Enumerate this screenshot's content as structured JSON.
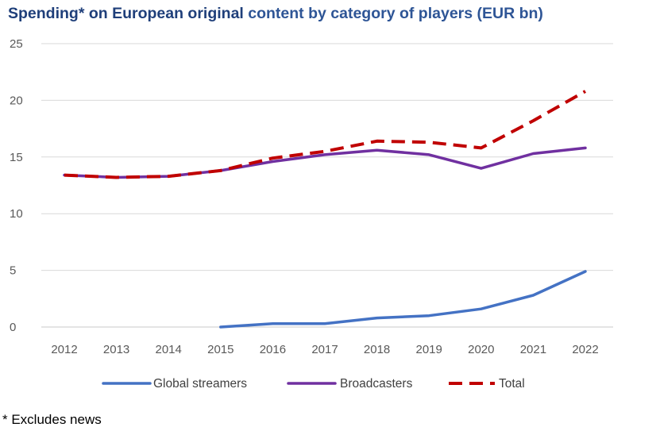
{
  "chart_data": {
    "type": "line",
    "title_part1": "Spending* on European original",
    "title_part2": "content by category of players (EUR bn)",
    "x": [
      "2012",
      "2013",
      "2014",
      "2015",
      "2016",
      "2017",
      "2018",
      "2019",
      "2020",
      "2021",
      "2022"
    ],
    "ylim": [
      0,
      25
    ],
    "yticks": [
      "0",
      "5",
      "10",
      "15",
      "20",
      "25"
    ],
    "ytick_values": [
      0,
      5,
      10,
      15,
      20,
      25
    ],
    "grid": true,
    "legend_position": "bottom",
    "series": [
      {
        "name": "Global streamers",
        "color": "#4472c4",
        "style": "solid",
        "values": [
          null,
          null,
          null,
          0.0,
          0.3,
          0.3,
          0.8,
          1.0,
          1.6,
          2.8,
          4.9
        ]
      },
      {
        "name": "Broadcasters",
        "color": "#7030a0",
        "style": "solid",
        "values": [
          13.4,
          13.2,
          13.3,
          13.8,
          14.6,
          15.2,
          15.6,
          15.2,
          14.0,
          15.3,
          15.8
        ]
      },
      {
        "name": "Total",
        "color": "#c00000",
        "style": "dashed",
        "values": [
          13.4,
          13.2,
          13.3,
          13.8,
          14.9,
          15.5,
          16.4,
          16.3,
          15.8,
          18.2,
          20.8
        ]
      }
    ]
  },
  "footnote": "* Excludes news"
}
